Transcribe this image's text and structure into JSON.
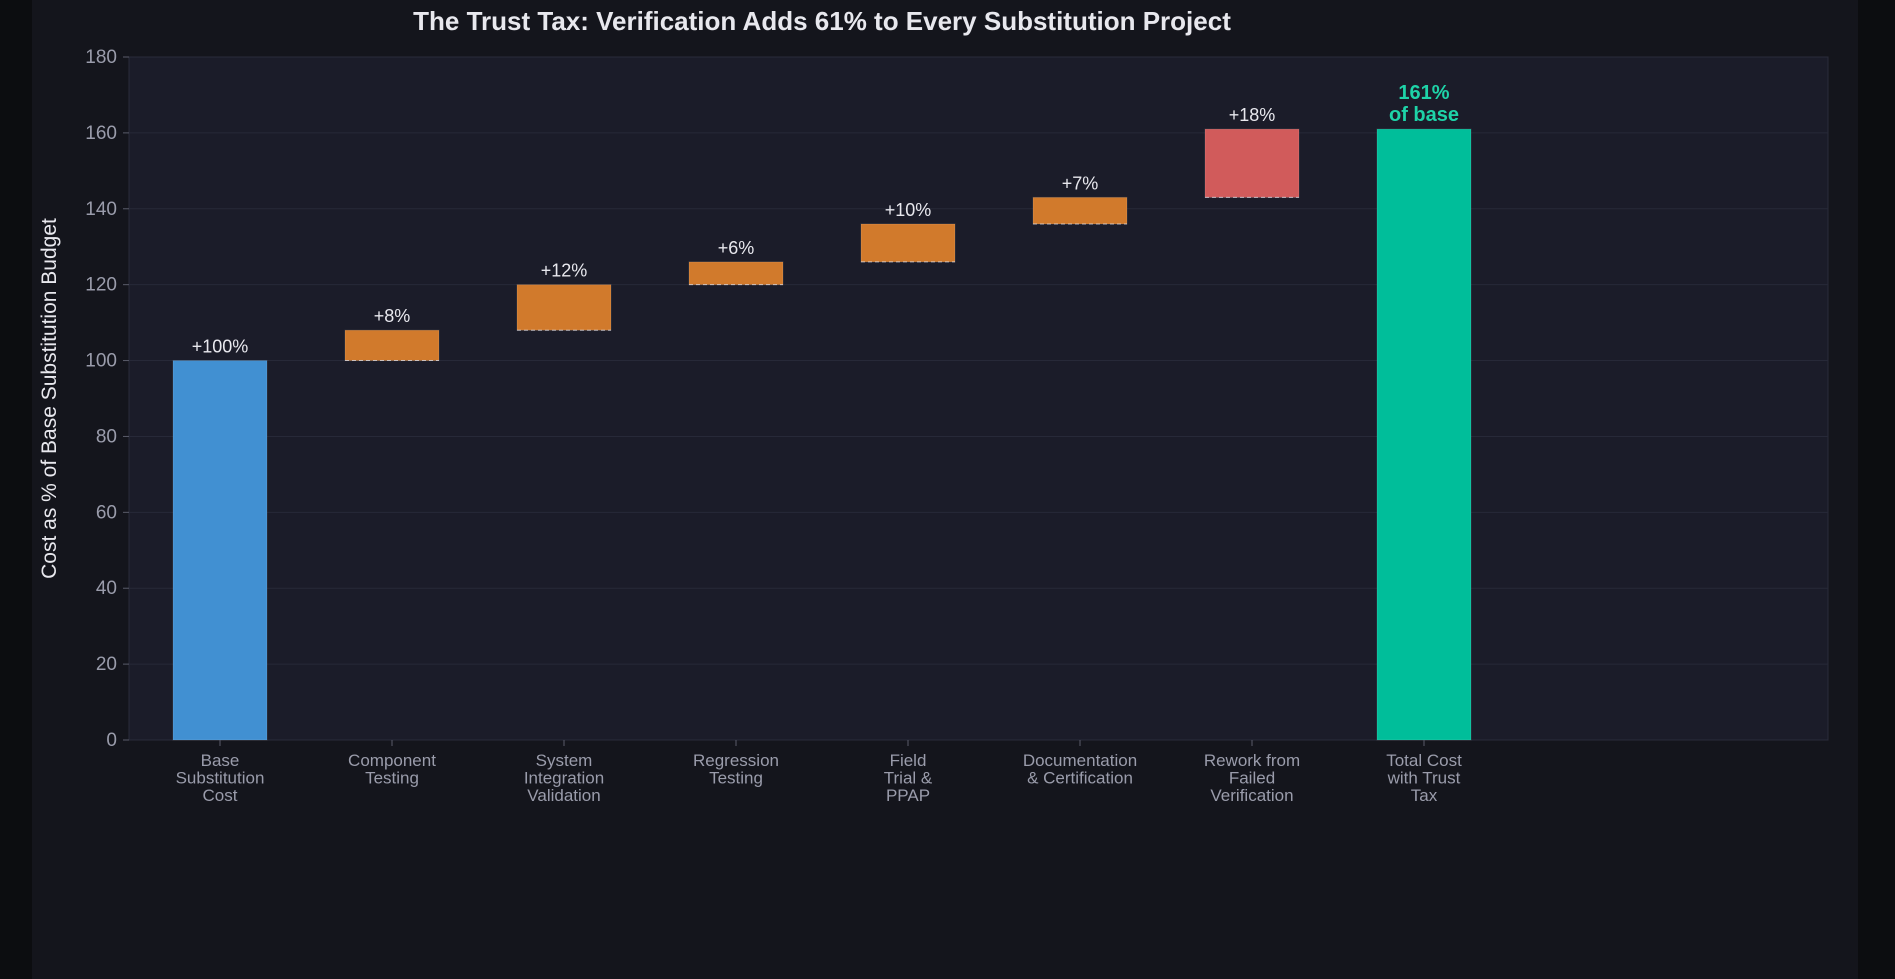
{
  "chart_data": {
    "type": "bar",
    "subtype": "waterfall",
    "title": "The Trust Tax: Verification Adds 61% to Every Substitution Project",
    "ylabel": "Cost as % of Base Substitution Budget",
    "xlabel": "",
    "ylim": [
      0,
      180
    ],
    "yticks": [
      0,
      20,
      40,
      60,
      80,
      100,
      120,
      140,
      160,
      180
    ],
    "grid": true,
    "categories": [
      [
        "Base",
        "Substitution",
        "Cost"
      ],
      [
        "Component",
        "Testing"
      ],
      [
        "System",
        "Integration",
        "Validation"
      ],
      [
        "Regression",
        "Testing"
      ],
      [
        "Field",
        "Trial &",
        "PPAP"
      ],
      [
        "Documentation",
        "& Certification"
      ],
      [
        "Rework from",
        "Failed",
        "Verification"
      ],
      [
        "Total Cost",
        "with Trust",
        "Tax"
      ]
    ],
    "steps": [
      {
        "kind": "base",
        "start": 0,
        "value": 100,
        "label": "+100%",
        "color": "#4190d2"
      },
      {
        "kind": "increment",
        "start": 100,
        "value": 8,
        "label": "+8%",
        "color": "#d17a2c"
      },
      {
        "kind": "increment",
        "start": 108,
        "value": 12,
        "label": "+12%",
        "color": "#d17a2c"
      },
      {
        "kind": "increment",
        "start": 120,
        "value": 6,
        "label": "+6%",
        "color": "#d17a2c"
      },
      {
        "kind": "increment",
        "start": 126,
        "value": 10,
        "label": "+10%",
        "color": "#d17a2c"
      },
      {
        "kind": "increment",
        "start": 136,
        "value": 7,
        "label": "+7%",
        "color": "#d17a2c"
      },
      {
        "kind": "increment",
        "start": 143,
        "value": 18,
        "label": "+18%",
        "color": "#d15b5b"
      },
      {
        "kind": "total",
        "start": 0,
        "value": 161,
        "label": [
          "161%",
          "of base"
        ],
        "color": "#00be9a"
      }
    ],
    "colors": {
      "background": "#14151c",
      "plot_area": "#1b1c29",
      "text": "#e8e8ee",
      "muted_text": "#9a9cab",
      "total_label": "#1ed3a8"
    }
  }
}
